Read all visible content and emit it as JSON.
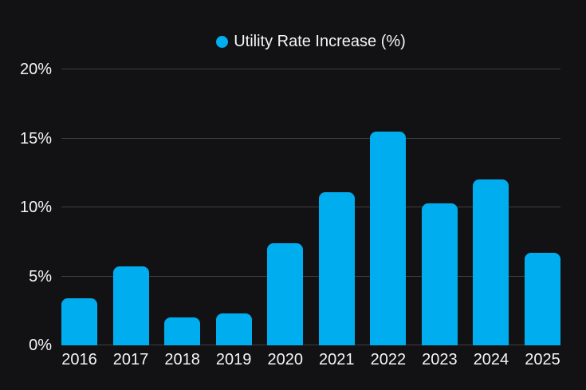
{
  "legend": {
    "label": "Utility Rate Increase (%)"
  },
  "chart_data": {
    "type": "bar",
    "title": "Utility Rate Increase (%)",
    "categories": [
      "2016",
      "2017",
      "2018",
      "2019",
      "2020",
      "2021",
      "2022",
      "2023",
      "2024",
      "2025"
    ],
    "series": [
      {
        "name": "Utility Rate Increase (%)",
        "color": "#00aeef",
        "values": [
          3.4,
          5.7,
          2.0,
          2.3,
          7.4,
          11.1,
          15.5,
          10.3,
          12.0,
          6.7
        ]
      }
    ],
    "y_ticks": [
      {
        "value": 0,
        "label": "0%"
      },
      {
        "value": 5,
        "label": "5%"
      },
      {
        "value": 10,
        "label": "10%"
      },
      {
        "value": 15,
        "label": "15%"
      },
      {
        "value": 20,
        "label": "20%"
      }
    ],
    "ylim": [
      0,
      20
    ],
    "grid": true,
    "legend_position": "top"
  },
  "colors": {
    "background": "#121214",
    "bar": "#00aeef",
    "grid": "#3f3f42",
    "text": "#f5f5f5"
  }
}
